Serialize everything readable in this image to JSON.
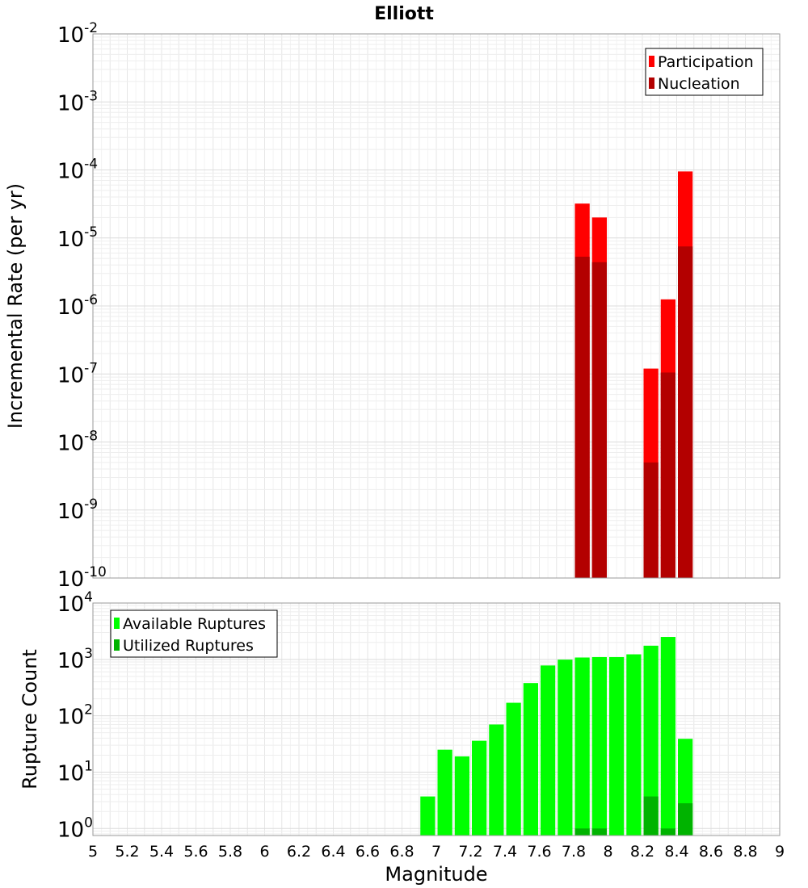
{
  "title": "Elliott",
  "chart_data": [
    {
      "type": "bar",
      "yscale": "log",
      "ylabel": "Incremental Rate (per yr)",
      "ylim": [
        1e-10,
        0.01
      ],
      "xlim": [
        5,
        9
      ],
      "grid": true,
      "legend_position": "top-right",
      "y_tick_labels": [
        {
          "base": "10",
          "exp": "-10"
        },
        {
          "base": "10",
          "exp": "-9"
        },
        {
          "base": "10",
          "exp": "-8"
        },
        {
          "base": "10",
          "exp": "-7"
        },
        {
          "base": "10",
          "exp": "-6"
        },
        {
          "base": "10",
          "exp": "-5"
        },
        {
          "base": "10",
          "exp": "-4"
        },
        {
          "base": "10",
          "exp": "-3"
        },
        {
          "base": "10",
          "exp": "-2"
        }
      ],
      "x": [
        7.85,
        7.95,
        8.25,
        8.35,
        8.45
      ],
      "series": [
        {
          "name": "Participation",
          "color": "#ff0000",
          "values": [
            3.2e-05,
            2e-05,
            1.2e-07,
            1.25e-06,
            9.5e-05
          ]
        },
        {
          "name": "Nucleation",
          "color": "#b30000",
          "values": [
            5.3e-06,
            4.4e-06,
            5e-09,
            1.05e-07,
            7.5e-06
          ]
        }
      ]
    },
    {
      "type": "bar",
      "yscale": "log",
      "ylabel": "Rupture Count",
      "xlabel": "Magnitude",
      "ylim": [
        0.75,
        10000
      ],
      "xlim": [
        5,
        9
      ],
      "grid": true,
      "legend_position": "top-left",
      "y_tick_labels": [
        {
          "base": "10",
          "exp": "0"
        },
        {
          "base": "10",
          "exp": "1"
        },
        {
          "base": "10",
          "exp": "2"
        },
        {
          "base": "10",
          "exp": "3"
        },
        {
          "base": "10",
          "exp": "4"
        }
      ],
      "x_tick_labels": [
        "5",
        "5.2",
        "5.4",
        "5.6",
        "5.8",
        "6",
        "6.2",
        "6.4",
        "6.6",
        "6.8",
        "7",
        "7.2",
        "7.4",
        "7.6",
        "7.8",
        "8",
        "8.2",
        "8.4",
        "8.6",
        "8.8",
        "9"
      ],
      "x": [
        6.95,
        7.05,
        7.15,
        7.25,
        7.35,
        7.45,
        7.55,
        7.65,
        7.75,
        7.85,
        7.95,
        8.05,
        8.15,
        8.25,
        8.35,
        8.45
      ],
      "series": [
        {
          "name": "Available Ruptures",
          "color": "#00ff00",
          "values": [
            3.7,
            25,
            19,
            36,
            70,
            170,
            380,
            780,
            990,
            1080,
            1100,
            1100,
            1230,
            1750,
            2500,
            39
          ]
        },
        {
          "name": "Utilized Ruptures",
          "color": "#00b300",
          "values": [
            null,
            null,
            null,
            null,
            null,
            null,
            null,
            null,
            null,
            1,
            1,
            null,
            null,
            3.7,
            1,
            2.8
          ]
        }
      ]
    }
  ]
}
